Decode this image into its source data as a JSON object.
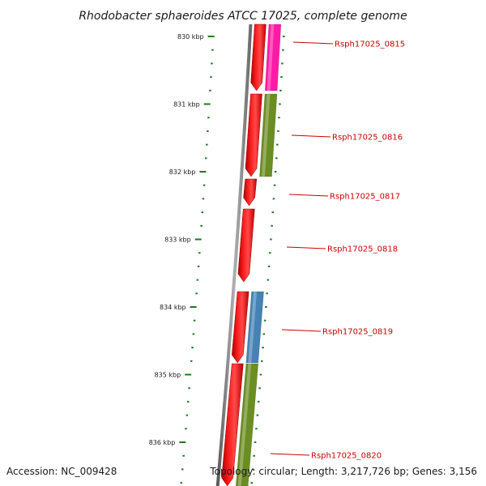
{
  "title": "Rhodobacter sphaeroides ATCC 17025, complete genome",
  "footer": {
    "accession": "Accession: NC_009428",
    "topology": "Topology: circular; Length: 3,217,726 bp; Genes: 3,156"
  },
  "scale": {
    "unit": "kbp",
    "major_ticks": [
      830,
      831,
      832,
      833,
      834,
      835,
      836
    ],
    "labels": [
      "830 kbp",
      "831 kbp",
      "832 kbp",
      "833 kbp",
      "834 kbp",
      "835 kbp",
      "836 kbp"
    ]
  },
  "genes": [
    {
      "name": "Rsph17025_0815",
      "cog_color": "#ff1aa8"
    },
    {
      "name": "Rsph17025_0816",
      "cog_color": "#6b8e23"
    },
    {
      "name": "Rsph17025_0817",
      "cog_color": null
    },
    {
      "name": "Rsph17025_0818",
      "cog_color": null
    },
    {
      "name": "Rsph17025_0819",
      "cog_color": "#4682b4"
    },
    {
      "name": "Rsph17025_0820",
      "cog_color": "#6b8e23"
    }
  ],
  "colors": {
    "backbone": "#808080",
    "cds": "#ff0000",
    "tick": "#1f7a1f",
    "label": "#cc0000"
  }
}
